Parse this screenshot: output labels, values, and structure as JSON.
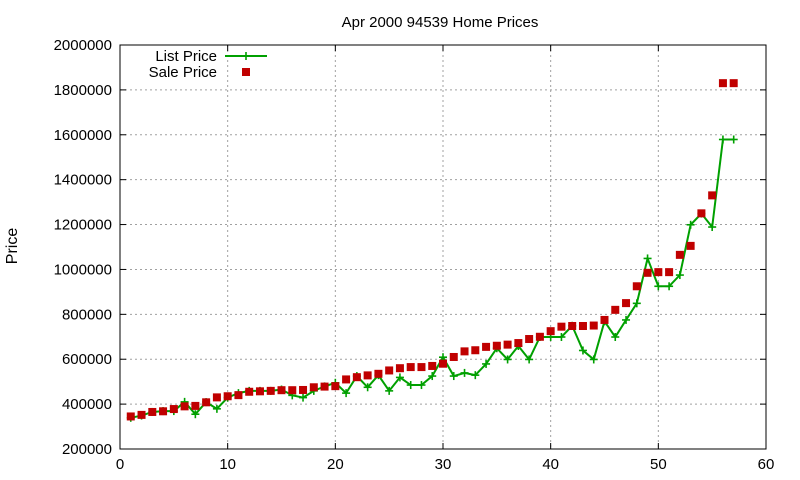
{
  "chart_data": {
    "type": "scatter",
    "title": "Apr 2000 94539 Home Prices",
    "xlabel": "",
    "ylabel": "Price",
    "xlim": [
      0,
      60
    ],
    "ylim": [
      200000,
      2000000
    ],
    "xticks": [
      0,
      10,
      20,
      30,
      40,
      50,
      60
    ],
    "yticks": [
      200000,
      400000,
      600000,
      800000,
      1000000,
      1200000,
      1400000,
      1600000,
      1800000,
      2000000
    ],
    "grid": true,
    "legend": "top-left",
    "series": [
      {
        "name": "List Price",
        "style": "line-points",
        "color": "#00a000",
        "x": [
          1,
          2,
          3,
          4,
          5,
          6,
          7,
          8,
          9,
          10,
          11,
          12,
          13,
          14,
          15,
          16,
          17,
          18,
          19,
          20,
          21,
          22,
          23,
          24,
          25,
          26,
          27,
          28,
          29,
          30,
          31,
          32,
          33,
          34,
          35,
          36,
          37,
          38,
          39,
          40,
          41,
          42,
          43,
          44,
          45,
          46,
          47,
          48,
          49,
          50,
          51,
          52,
          53,
          54,
          55,
          56,
          57
        ],
        "values": [
          339000,
          349000,
          365000,
          369000,
          369000,
          410000,
          355000,
          409000,
          379000,
          429000,
          449000,
          459000,
          459000,
          459000,
          465000,
          439000,
          429000,
          459000,
          479000,
          495000,
          449000,
          525000,
          475000,
          529000,
          459000,
          519000,
          485000,
          485000,
          525000,
          609000,
          525000,
          539000,
          529000,
          579000,
          649000,
          599000,
          659000,
          599000,
          699000,
          699000,
          699000,
          749000,
          639000,
          599000,
          769000,
          699000,
          775000,
          849000,
          1049000,
          925000,
          925000,
          975000,
          1199000,
          1249000,
          1189000,
          1579000,
          1579000
        ]
      },
      {
        "name": "Sale Price",
        "style": "points",
        "color": "#c00000",
        "x": [
          1,
          2,
          3,
          4,
          5,
          6,
          7,
          8,
          9,
          10,
          11,
          12,
          13,
          14,
          15,
          16,
          17,
          18,
          19,
          20,
          21,
          22,
          23,
          24,
          25,
          26,
          27,
          28,
          29,
          30,
          31,
          32,
          33,
          34,
          35,
          36,
          37,
          38,
          39,
          40,
          41,
          42,
          43,
          44,
          45,
          46,
          47,
          48,
          49,
          50,
          51,
          52,
          53,
          54,
          55,
          56,
          57
        ],
        "values": [
          345000,
          352000,
          365000,
          368000,
          378000,
          390000,
          392000,
          408000,
          430000,
          435000,
          440000,
          455000,
          457000,
          459000,
          462000,
          462000,
          463000,
          475000,
          478000,
          480000,
          510000,
          520000,
          528000,
          535000,
          550000,
          560000,
          565000,
          565000,
          570000,
          580000,
          610000,
          635000,
          640000,
          655000,
          660000,
          665000,
          672000,
          690000,
          700000,
          725000,
          745000,
          748000,
          748000,
          750000,
          775000,
          820000,
          850000,
          925000,
          985000,
          988000,
          988000,
          1065000,
          1105000,
          1250000,
          1330000,
          1830000,
          1830000
        ]
      }
    ]
  }
}
